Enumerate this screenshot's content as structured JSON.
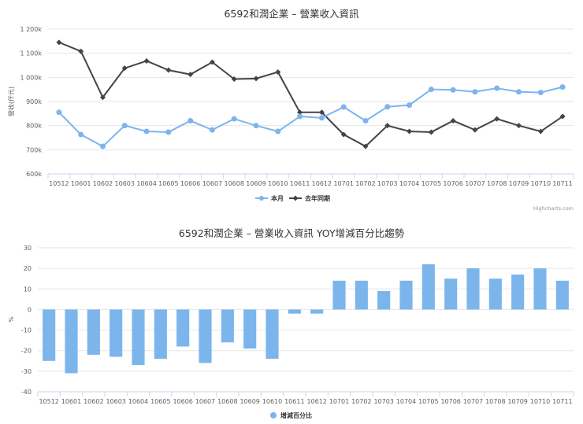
{
  "colors": {
    "current": "#7cb5ec",
    "last_year": "#434348",
    "bar": "#7cb5ec",
    "grid": "#e6e6e6",
    "axis": "#ccd6eb"
  },
  "credits": "Highcharts.com",
  "chart_data": [
    {
      "type": "line",
      "title": "6592和潤企業 – 營業收入資訊",
      "xlabel": "",
      "ylabel": "營收(仟元)",
      "ylim": [
        600000,
        1200000
      ],
      "yticks": [
        "600k",
        "700k",
        "800k",
        "900k",
        "1 000k",
        "1 100k",
        "1 200k"
      ],
      "ytick_values": [
        600000,
        700000,
        800000,
        900000,
        1000000,
        1100000,
        1200000
      ],
      "grid": true,
      "legend_position": "bottom-center",
      "categories": [
        "10512",
        "10601",
        "10602",
        "10603",
        "10604",
        "10605",
        "10606",
        "10607",
        "10608",
        "10609",
        "10610",
        "10611",
        "10612",
        "10701",
        "10702",
        "10703",
        "10704",
        "10705",
        "10706",
        "10707",
        "10708",
        "10709",
        "10710",
        "10711"
      ],
      "series": [
        {
          "name": "本月",
          "color": "#7cb5ec",
          "marker": "circle",
          "values": [
            855000,
            763000,
            714000,
            800000,
            776000,
            773000,
            820000,
            782000,
            828000,
            800000,
            776000,
            838000,
            832000,
            877000,
            820000,
            878000,
            885000,
            950000,
            948000,
            940000,
            955000,
            940000,
            937000,
            960000
          ]
        },
        {
          "name": "去年同期",
          "color": "#434348",
          "marker": "diamond",
          "values": [
            1145000,
            1108000,
            917000,
            1038000,
            1068000,
            1030000,
            1012000,
            1063000,
            993000,
            995000,
            1022000,
            855000,
            855000,
            763000,
            714000,
            800000,
            776000,
            773000,
            820000,
            782000,
            828000,
            800000,
            776000,
            838000
          ]
        }
      ]
    },
    {
      "type": "bar",
      "title": "6592和潤企業 – 營業收入資訊 YOY增減百分比趨勢",
      "xlabel": "",
      "ylabel": "%",
      "ylim": [
        -40,
        30
      ],
      "yticks": [
        "-40",
        "-30",
        "-20",
        "-10",
        "0",
        "10",
        "20",
        "30"
      ],
      "ytick_values": [
        -40,
        -30,
        -20,
        -10,
        0,
        10,
        20,
        30
      ],
      "grid": true,
      "legend_position": "bottom-center",
      "categories": [
        "10512",
        "10601",
        "10602",
        "10603",
        "10604",
        "10605",
        "10606",
        "10607",
        "10608",
        "10609",
        "10610",
        "10611",
        "10612",
        "10701",
        "10702",
        "10703",
        "10704",
        "10705",
        "10706",
        "10707",
        "10708",
        "10709",
        "10710",
        "10711"
      ],
      "series": [
        {
          "name": "增減百分比",
          "color": "#7cb5ec",
          "values": [
            -25,
            -31,
            -22,
            -23,
            -27,
            -24,
            -18,
            -26,
            -16,
            -19,
            -24,
            -2,
            -2,
            14,
            14,
            9,
            14,
            22,
            15,
            20,
            15,
            17,
            20,
            14
          ]
        }
      ]
    }
  ]
}
